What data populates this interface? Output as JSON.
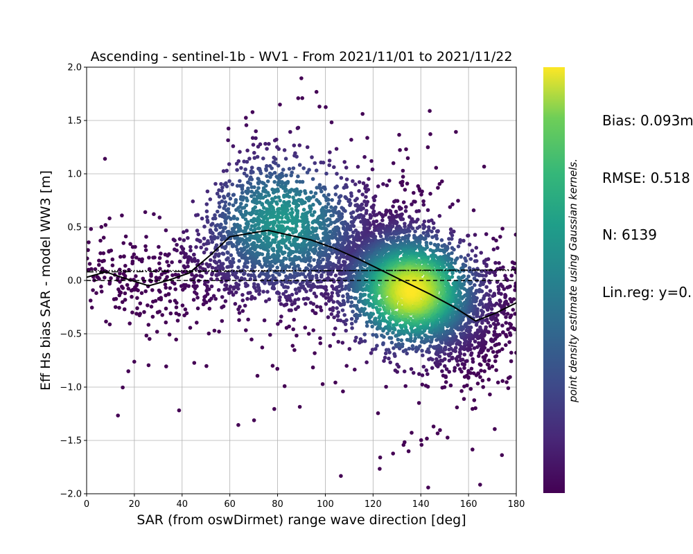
{
  "chart_data": {
    "type": "scatter",
    "title": "Ascending - sentinel-1b - WV1 - From 2021/11/01 to 2021/11/22",
    "xlabel": "SAR (from oswDirmet) range wave direction [deg]",
    "ylabel": "Eff Hs bias SAR - model WW3 [m]",
    "xlim": [
      0,
      180
    ],
    "ylim": [
      -2.0,
      2.0
    ],
    "xticks": [
      "0",
      "20",
      "40",
      "60",
      "80",
      "100",
      "120",
      "140",
      "160",
      "180"
    ],
    "yticks": [
      "−2.0",
      "−1.5",
      "−1.0",
      "−0.5",
      "0.0",
      "0.5",
      "1.0",
      "1.5",
      "2.0"
    ],
    "grid": true,
    "colormap": "viridis",
    "colorbar_label": "point density estimate using Gaussian kernels.",
    "point_count": 6139,
    "mean_curve": {
      "x": [
        0,
        8,
        16,
        26,
        34,
        43,
        52,
        60,
        68,
        76,
        84,
        94,
        104,
        114,
        124,
        134,
        144,
        154,
        163,
        172,
        180
      ],
      "y": [
        0.03,
        0.08,
        0.02,
        -0.05,
        0.0,
        0.07,
        0.24,
        0.41,
        0.44,
        0.47,
        0.43,
        0.38,
        0.3,
        0.2,
        0.09,
        -0.02,
        -0.13,
        -0.25,
        -0.38,
        -0.3,
        -0.21
      ]
    },
    "zero_line": {
      "y": 0.0,
      "style": "dashed"
    },
    "regression_line": {
      "x": [
        0,
        180
      ],
      "y": [
        0.08,
        0.1
      ],
      "style": "dash-dot"
    },
    "bias_line": {
      "y": 0.093,
      "style": "dotted"
    },
    "dense_core": {
      "x": 136,
      "y": -0.1
    },
    "stats_text": [
      "Bias: 0.093m",
      "RMSE: 0.518",
      "N: 6139",
      "Lin.reg: y=0."
    ]
  }
}
